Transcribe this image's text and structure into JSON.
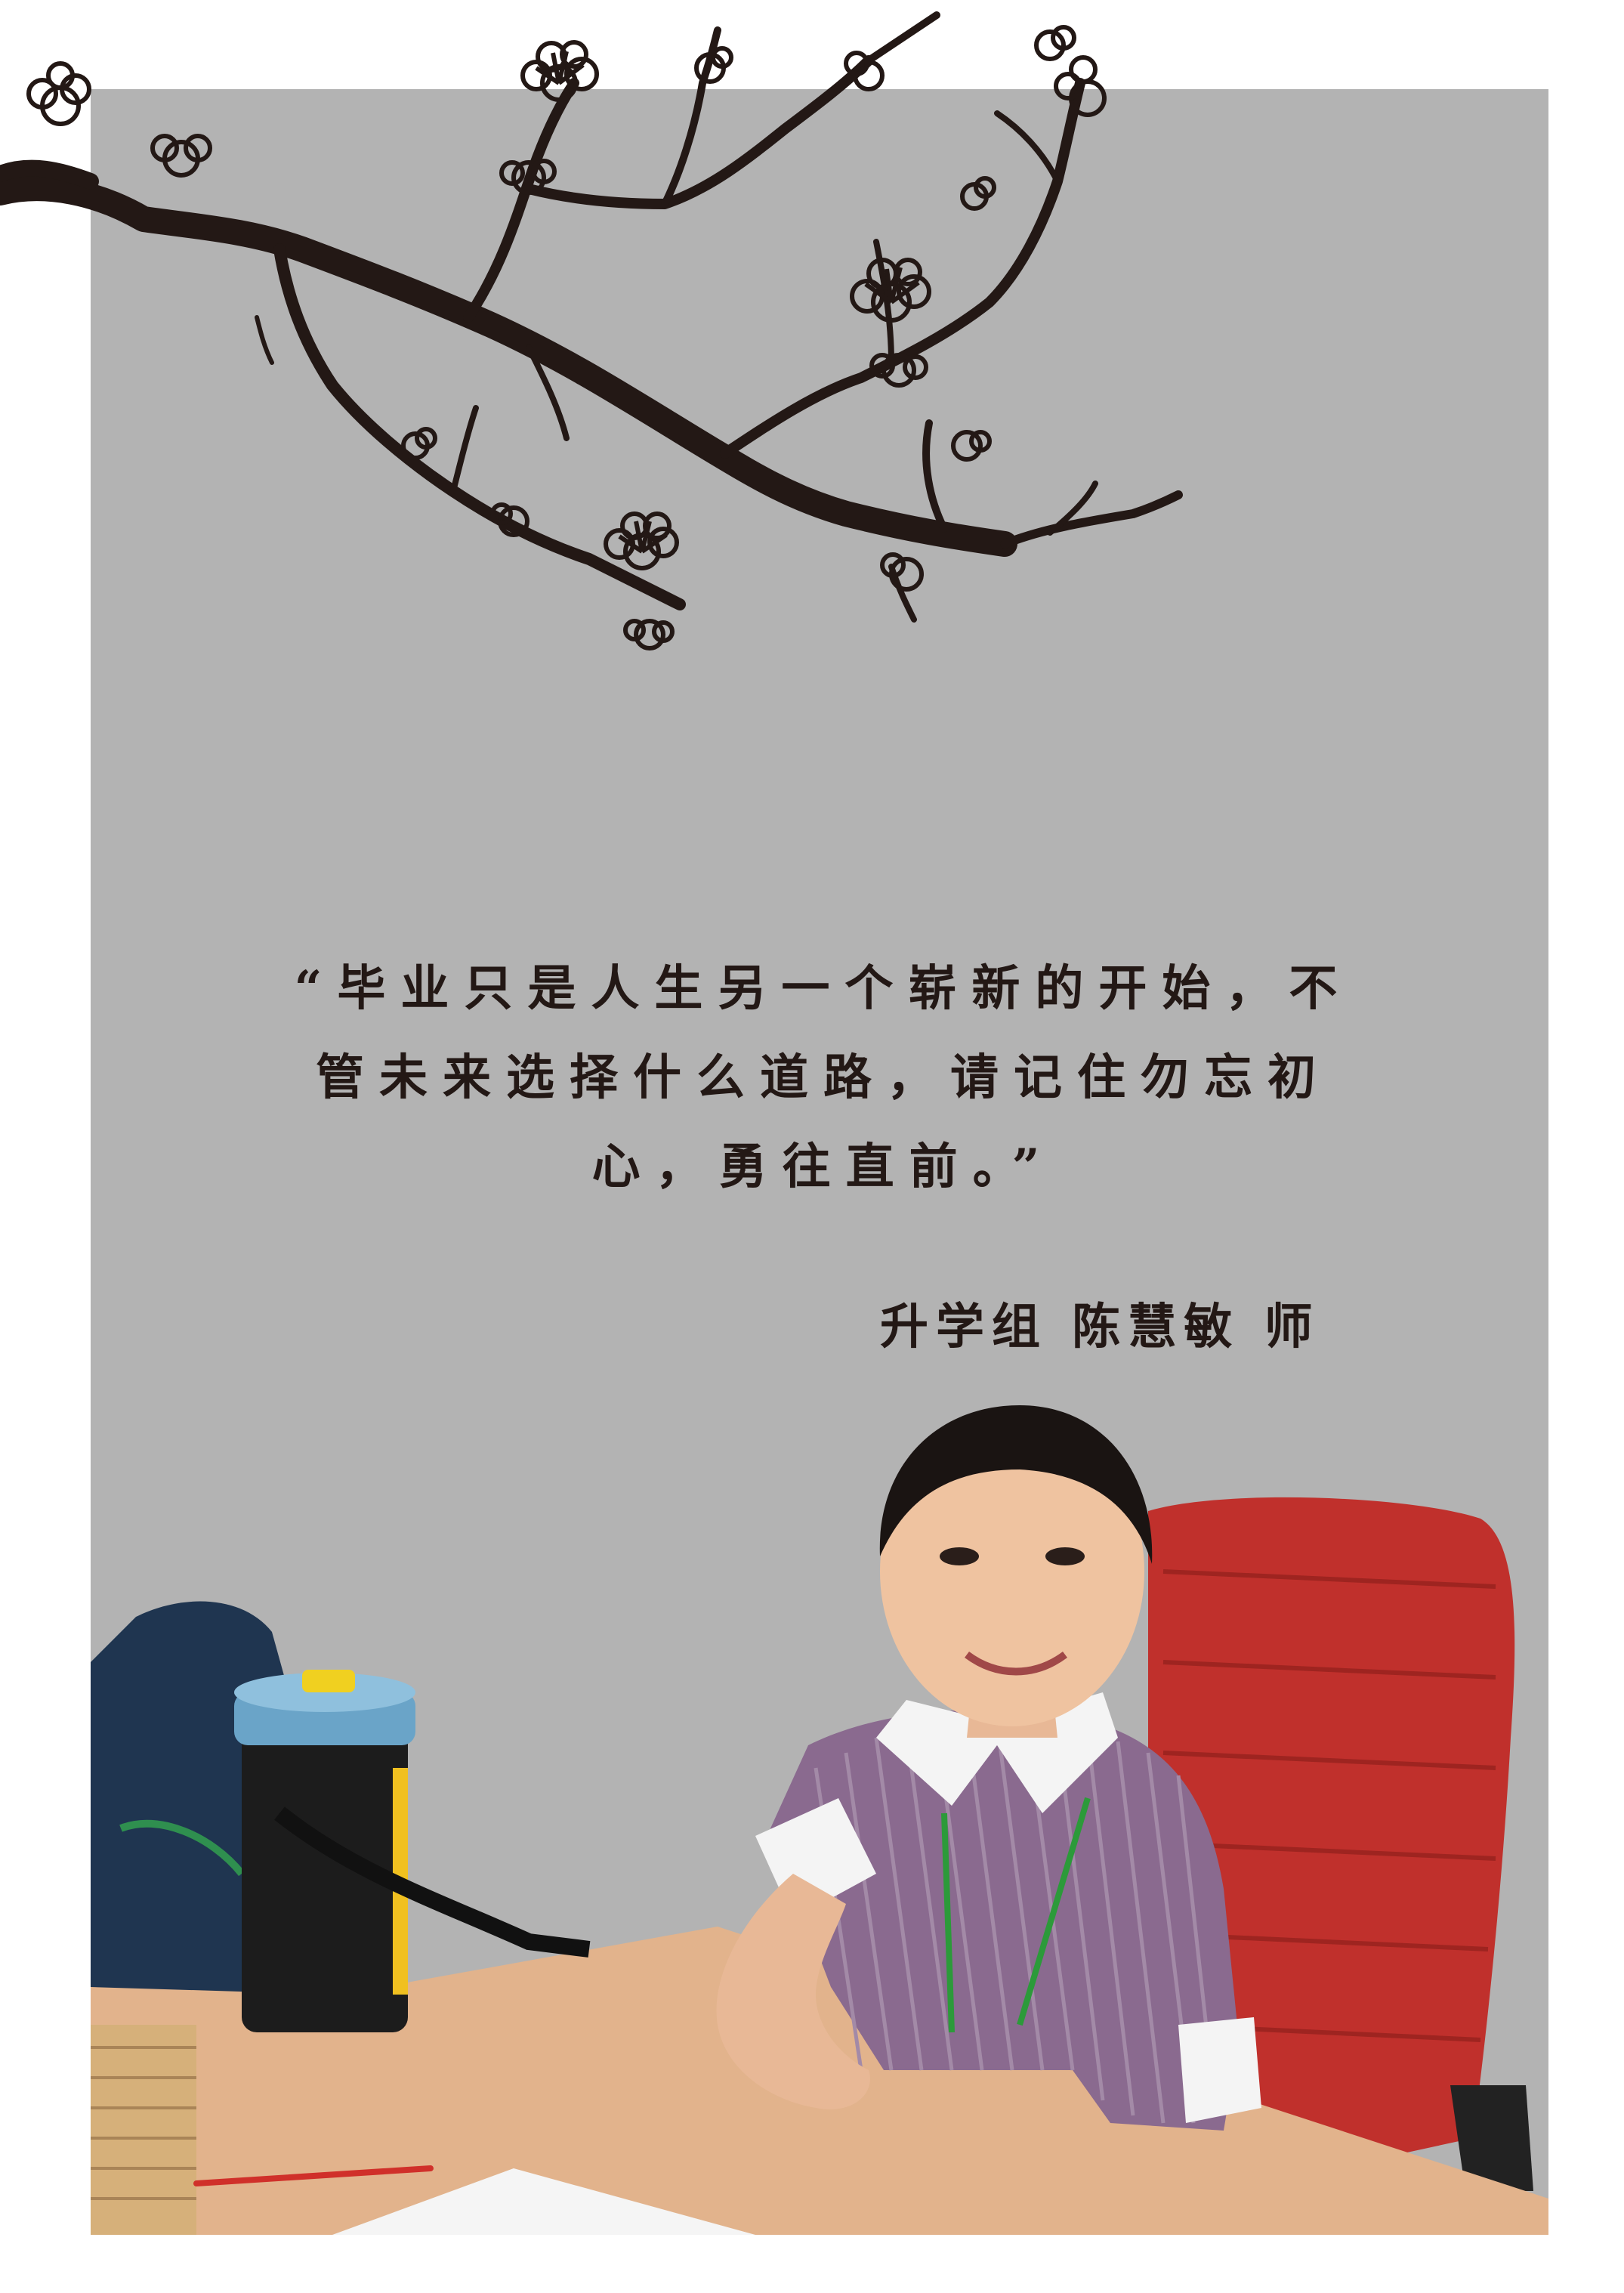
{
  "quote": {
    "line1": "“毕业只是人生另一个崭新的开始，不",
    "line2": "管未来选择什么道路，请记住勿忘初",
    "line3": "心，勇往直前。”"
  },
  "signature": {
    "group": "升学组",
    "name": "陈慧敏",
    "title": "师"
  },
  "colors": {
    "background": "#b3b3b3",
    "ink": "#231815",
    "chair": "#c0302c",
    "desk": "#e2b38c",
    "shirt": "#8a6a8f"
  },
  "icons": {
    "branch": "plum-blossom-branch-illustration",
    "photo": "teacher-portrait-photo"
  }
}
